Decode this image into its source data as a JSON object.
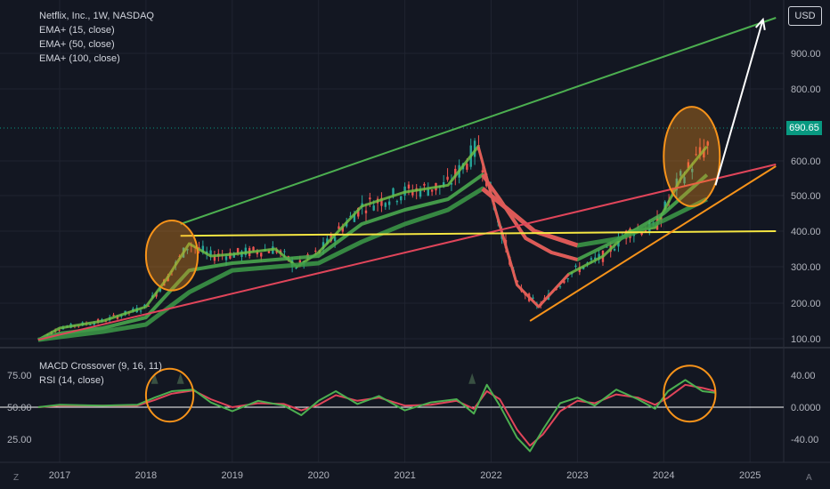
{
  "legend": {
    "symbol": "Netflix, Inc., 1W, NASDAQ",
    "ema_short": "EMA+ (15, close)",
    "ema_mid": "EMA+ (50, close)",
    "ema_long": "EMA+ (100, close)",
    "macd": "MACD Crossover (9, 16, 11)",
    "rsi": "RSI (14, close)"
  },
  "currency_label": "USD",
  "last_price_label": "690.65",
  "corner_left": "Z",
  "corner_right": "A",
  "colors": {
    "background": "#131722",
    "grid": "#1f2330",
    "candle_up": "#26a69a",
    "candle_down": "#ef5350",
    "ema_short": "#6dbe45",
    "ema_mid": "#4caf50",
    "ema_long": "#3d9b48",
    "ema_red": "#f0535a",
    "trend_green": "#4caf50",
    "trend_red": "#e0455a",
    "support_orange": "#f7931a",
    "resistance_yellow": "#f5e642",
    "highlight_orange": "#f7931a",
    "arrow": "#ffffff",
    "macd_line": "#4caf50",
    "signal_line": "#e0455a",
    "price_tag": "#089981"
  },
  "chart_data": [
    {
      "type": "line",
      "title": "Netflix, Inc., 1W, NASDAQ",
      "x_ticks": [
        "2017",
        "2018",
        "2019",
        "2020",
        "2021",
        "2022",
        "2023",
        "2024",
        "2025"
      ],
      "y_ticks": [
        "100.00",
        "200.00",
        "300.00",
        "400.00",
        "500.00",
        "600.00",
        "800.00",
        "900.00"
      ],
      "ylim": [
        95,
        1000
      ],
      "last_price": 690.65,
      "series": [
        {
          "name": "EMA+ (15, close)",
          "x": [
            2016.75,
            2017,
            2017.5,
            2018,
            2018.25,
            2018.5,
            2018.75,
            2019,
            2019.5,
            2019.75,
            2020,
            2020.5,
            2020.75,
            2021,
            2021.5,
            2021.85,
            2022.05,
            2022.3,
            2022.55,
            2022.9,
            2023.3,
            2023.6,
            2023.9,
            2024.2,
            2024.5
          ],
          "values": [
            97,
            130,
            150,
            190,
            270,
            365,
            330,
            335,
            350,
            300,
            340,
            470,
            490,
            510,
            530,
            640,
            460,
            250,
            190,
            280,
            330,
            400,
            410,
            550,
            640
          ]
        },
        {
          "name": "EMA+ (50, close)",
          "x": [
            2016.75,
            2017,
            2017.5,
            2018,
            2018.5,
            2018.75,
            2019,
            2019.5,
            2020,
            2020.5,
            2021,
            2021.5,
            2021.9,
            2022.1,
            2022.4,
            2022.7,
            2023,
            2023.5,
            2024,
            2024.5
          ],
          "values": [
            97,
            115,
            130,
            160,
            290,
            300,
            310,
            320,
            330,
            420,
            460,
            490,
            560,
            490,
            380,
            340,
            320,
            380,
            450,
            560
          ]
        },
        {
          "name": "EMA+ (100, close)",
          "x": [
            2016.75,
            2017,
            2017.5,
            2018,
            2018.5,
            2019,
            2019.5,
            2020,
            2020.5,
            2021,
            2021.5,
            2021.9,
            2022.2,
            2022.5,
            2023,
            2023.5,
            2024,
            2024.5
          ],
          "values": [
            97,
            105,
            120,
            140,
            230,
            290,
            300,
            310,
            370,
            420,
            460,
            520,
            460,
            400,
            360,
            380,
            430,
            490
          ]
        }
      ],
      "annotations": [
        {
          "type": "trend_line",
          "color": "green",
          "x": [
            2018.4,
            2025.3
          ],
          "values": [
            420,
            1000
          ]
        },
        {
          "type": "trend_line",
          "color": "red",
          "x": [
            2016.75,
            2025.3
          ],
          "values": [
            97,
            590
          ]
        },
        {
          "type": "horizontal_line",
          "color": "yellow",
          "x": [
            2018.4,
            2025.3
          ],
          "values": [
            387,
            400
          ]
        },
        {
          "type": "trend_line",
          "color": "orange",
          "x": [
            2022.45,
            2025.3
          ],
          "values": [
            150,
            585
          ]
        },
        {
          "type": "ellipse_highlight",
          "color": "orange",
          "x_range": [
            2018.0,
            2018.6
          ],
          "y_range": [
            235,
            430
          ]
        },
        {
          "type": "ellipse_highlight",
          "color": "orange",
          "x_range": [
            2024.0,
            2024.65
          ],
          "y_range": [
            470,
            750
          ]
        },
        {
          "type": "arrow",
          "color": "white",
          "x": [
            2024.6,
            2025.15
          ],
          "values": [
            530,
            995
          ]
        }
      ]
    },
    {
      "type": "line",
      "title": "MACD Crossover (9, 16, 11) / RSI (14, close)",
      "left_y_ticks": [
        "75.00",
        "50.00",
        "25.00"
      ],
      "right_y_ticks": [
        "40.00",
        "0.0000",
        "-40.00"
      ],
      "ylim": [
        -50,
        50
      ],
      "series": [
        {
          "name": "MACD",
          "x": [
            2016.75,
            2017,
            2017.5,
            2017.9,
            2018.1,
            2018.3,
            2018.55,
            2018.75,
            2019,
            2019.3,
            2019.6,
            2019.8,
            2020,
            2020.2,
            2020.45,
            2020.7,
            2021,
            2021.3,
            2021.6,
            2021.8,
            2021.95,
            2022.1,
            2022.3,
            2022.45,
            2022.6,
            2022.8,
            2023,
            2023.2,
            2023.45,
            2023.7,
            2023.9,
            2024.05,
            2024.25,
            2024.45,
            2024.6
          ],
          "values": [
            0,
            3,
            2,
            3,
            12,
            20,
            22,
            6,
            -5,
            8,
            2,
            -10,
            8,
            20,
            4,
            14,
            -4,
            6,
            10,
            -8,
            28,
            2,
            -38,
            -55,
            -28,
            5,
            12,
            2,
            22,
            10,
            -2,
            20,
            34,
            20,
            18
          ]
        },
        {
          "name": "Signal",
          "x": [
            2016.75,
            2017,
            2017.5,
            2017.9,
            2018.1,
            2018.3,
            2018.55,
            2018.75,
            2019,
            2019.3,
            2019.6,
            2019.8,
            2020,
            2020.2,
            2020.45,
            2020.7,
            2021,
            2021.3,
            2021.6,
            2021.8,
            2021.95,
            2022.1,
            2022.3,
            2022.45,
            2022.6,
            2022.8,
            2023,
            2023.2,
            2023.45,
            2023.7,
            2023.9,
            2024.05,
            2024.25,
            2024.45,
            2024.6
          ],
          "values": [
            0,
            2,
            2,
            2,
            9,
            17,
            21,
            10,
            0,
            5,
            4,
            -4,
            3,
            15,
            8,
            12,
            2,
            3,
            8,
            -2,
            20,
            10,
            -28,
            -48,
            -34,
            -5,
            8,
            5,
            16,
            12,
            3,
            12,
            28,
            24,
            20
          ]
        }
      ],
      "annotations": [
        {
          "type": "ellipse_highlight",
          "color": "orange",
          "x_range": [
            2018.0,
            2018.55
          ],
          "y_range": [
            -18,
            48
          ]
        },
        {
          "type": "ellipse_highlight",
          "color": "orange",
          "x_range": [
            2024.0,
            2024.6
          ],
          "y_range": [
            -18,
            52
          ]
        }
      ]
    }
  ]
}
